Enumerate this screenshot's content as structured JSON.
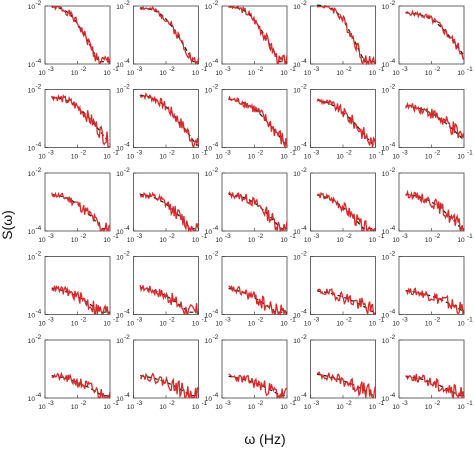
{
  "chart_data": {
    "type": "line",
    "grid": {
      "rows": 5,
      "cols": 5
    },
    "xlabel": "ω (Hz)",
    "ylabel": "S(ω)",
    "xscale": "log",
    "yscale": "log",
    "xlim": [
      0.001,
      0.1
    ],
    "ylim": [
      0.0001,
      0.01
    ],
    "xticks": [
      0.001,
      0.01,
      0.1
    ],
    "yticks": [
      0.0001,
      0.01
    ],
    "tick_base": "10",
    "xtick_exponents": [
      "-3",
      "-2",
      "-1"
    ],
    "ytick_exponents": [
      "-4",
      "-2"
    ],
    "grid_lines": false,
    "colors": {
      "model": "#111111",
      "data": "#d62a2a",
      "frame": "#444444"
    },
    "series_styles": {
      "model": "dashed",
      "data": "solid"
    },
    "panels": [
      {
        "level": 0.01,
        "corner": 0.006,
        "roll": 2.2,
        "jitter": 0.18,
        "seed": 1
      },
      {
        "level": 0.009,
        "corner": 0.008,
        "roll": 2.0,
        "jitter": 0.15,
        "seed": 2
      },
      {
        "level": 0.01,
        "corner": 0.007,
        "roll": 2.1,
        "jitter": 0.18,
        "seed": 3
      },
      {
        "level": 0.011,
        "corner": 0.007,
        "roll": 2.4,
        "jitter": 0.2,
        "seed": 4
      },
      {
        "level": 0.006,
        "corner": 0.012,
        "roll": 1.6,
        "jitter": 0.14,
        "seed": 5
      },
      {
        "level": 0.006,
        "corner": 0.008,
        "roll": 1.5,
        "jitter": 0.22,
        "seed": 6
      },
      {
        "level": 0.007,
        "corner": 0.007,
        "roll": 1.6,
        "jitter": 0.2,
        "seed": 7
      },
      {
        "level": 0.005,
        "corner": 0.008,
        "roll": 1.5,
        "jitter": 0.22,
        "seed": 8
      },
      {
        "level": 0.005,
        "corner": 0.006,
        "roll": 1.4,
        "jitter": 0.22,
        "seed": 9
      },
      {
        "level": 0.003,
        "corner": 0.01,
        "roll": 1.2,
        "jitter": 0.24,
        "seed": 10
      },
      {
        "level": 0.002,
        "corner": 0.008,
        "roll": 1.4,
        "jitter": 0.2,
        "seed": 11
      },
      {
        "level": 0.002,
        "corner": 0.008,
        "roll": 1.4,
        "jitter": 0.22,
        "seed": 12
      },
      {
        "level": 0.002,
        "corner": 0.009,
        "roll": 1.4,
        "jitter": 0.22,
        "seed": 13
      },
      {
        "level": 0.002,
        "corner": 0.006,
        "roll": 1.4,
        "jitter": 0.22,
        "seed": 14
      },
      {
        "level": 0.002,
        "corner": 0.01,
        "roll": 1.3,
        "jitter": 0.22,
        "seed": 15
      },
      {
        "level": 0.001,
        "corner": 0.007,
        "roll": 1.0,
        "jitter": 0.24,
        "seed": 16
      },
      {
        "level": 0.001,
        "corner": 0.008,
        "roll": 1.1,
        "jitter": 0.24,
        "seed": 17
      },
      {
        "level": 0.001,
        "corner": 0.006,
        "roll": 1.0,
        "jitter": 0.26,
        "seed": 18
      },
      {
        "level": 0.0008,
        "corner": 0.01,
        "roll": 0.8,
        "jitter": 0.24,
        "seed": 19
      },
      {
        "level": 0.0008,
        "corner": 0.012,
        "roll": 0.8,
        "jitter": 0.22,
        "seed": 20
      },
      {
        "level": 0.0007,
        "corner": 0.01,
        "roll": 0.9,
        "jitter": 0.22,
        "seed": 21
      },
      {
        "level": 0.0007,
        "corner": 0.01,
        "roll": 0.9,
        "jitter": 0.24,
        "seed": 22
      },
      {
        "level": 0.0007,
        "corner": 0.009,
        "roll": 0.8,
        "jitter": 0.24,
        "seed": 23
      },
      {
        "level": 0.0008,
        "corner": 0.01,
        "roll": 0.8,
        "jitter": 0.24,
        "seed": 24
      },
      {
        "level": 0.0007,
        "corner": 0.01,
        "roll": 0.8,
        "jitter": 0.24,
        "seed": 25
      }
    ]
  }
}
